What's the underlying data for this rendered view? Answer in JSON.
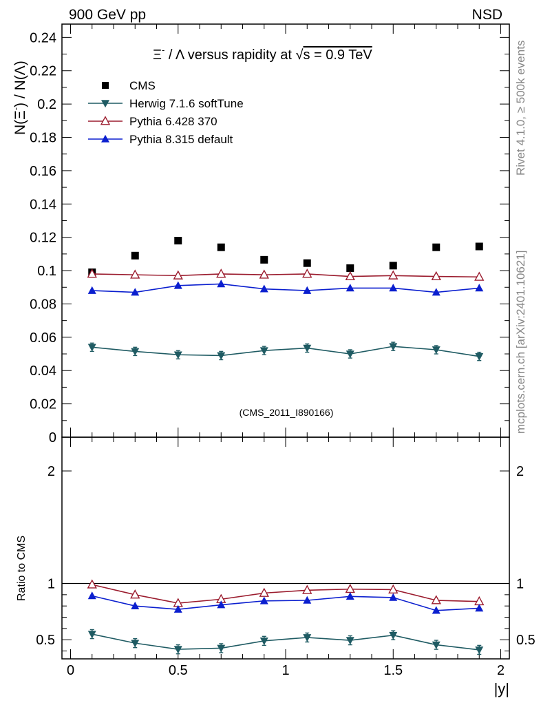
{
  "header": {
    "left_label": "900 GeV pp",
    "right_label": "NSD",
    "side_label_top": "Rivet 4.1.0, ≥ 500k events",
    "side_label_bottom": "mcplots.cern.ch [arXiv:2401.10621]"
  },
  "chart_data": [
    {
      "type": "scatter",
      "panel": "main",
      "title": "Ξ⁻ / Λ versus rapidity at √s = 0.9 TeV",
      "title_parts": {
        "prefix": "Ξ",
        "superscript": "-",
        "rest": " / Λ versus rapidity at ",
        "sqrt": "√",
        "s_eq": "s = 0.9 TeV"
      },
      "ylabel": "N(Ξ⁻)  /  N(Λ)",
      "ylabel_parts": {
        "a": "N(Ξ",
        "sup": "-",
        "b": ")  /  N(Λ)"
      },
      "xlabel": "|y|",
      "xlim": [
        -0.04,
        2.04
      ],
      "ylim": [
        0,
        0.248
      ],
      "ytick_labels": [
        "0",
        "0.02",
        "0.04",
        "0.06",
        "0.08",
        "0.1",
        "0.12",
        "0.14",
        "0.16",
        "0.18",
        "0.2",
        "0.22",
        "0.24"
      ],
      "ytick_values": [
        0,
        0.02,
        0.04,
        0.06,
        0.08,
        0.1,
        0.12,
        0.14,
        0.16,
        0.18,
        0.2,
        0.22,
        0.24
      ],
      "watermark": "(CMS_2011_I890166)",
      "x": [
        0.1,
        0.3,
        0.5,
        0.7,
        0.9,
        1.1,
        1.3,
        1.5,
        1.7,
        1.9
      ],
      "legend_position": "top-left",
      "series": [
        {
          "name": "CMS",
          "marker": "square",
          "color": "#000000",
          "line": false,
          "values": [
            0.099,
            0.109,
            0.118,
            0.114,
            0.1065,
            0.1045,
            0.1015,
            0.103,
            0.114,
            0.1145
          ]
        },
        {
          "name": "Herwig 7.1.6 softTune",
          "marker": "triangle-down",
          "color": "#1f5b63",
          "line": true,
          "values": [
            0.054,
            0.0515,
            0.0495,
            0.049,
            0.052,
            0.0535,
            0.05,
            0.0545,
            0.0525,
            0.0485
          ],
          "errors": [
            0.0025,
            0.0025,
            0.0025,
            0.0025,
            0.0025,
            0.0025,
            0.0025,
            0.0025,
            0.0025,
            0.0025
          ]
        },
        {
          "name": "Pythia 6.428 370",
          "marker": "triangle-up-open",
          "color": "#9b1c2e",
          "line": true,
          "values": [
            0.098,
            0.0975,
            0.097,
            0.098,
            0.0975,
            0.098,
            0.0965,
            0.097,
            0.0965,
            0.0962
          ]
        },
        {
          "name": "Pythia 8.315 default",
          "marker": "triangle-up",
          "color": "#0b1fcf",
          "line": true,
          "values": [
            0.088,
            0.087,
            0.091,
            0.092,
            0.089,
            0.088,
            0.0895,
            0.0895,
            0.087,
            0.0895
          ]
        }
      ]
    },
    {
      "type": "line",
      "panel": "ratio",
      "ylabel": "Ratio to CMS",
      "xlabel": "|y|",
      "xlim": [
        -0.04,
        2.04
      ],
      "ylim": [
        0.33,
        2.3
      ],
      "ytick_labels": [
        "0.5",
        "1",
        "2"
      ],
      "ytick_values": [
        0.5,
        1,
        2
      ],
      "xtick_labels": [
        "0",
        "0.5",
        "1",
        "1.5",
        "2"
      ],
      "xtick_values": [
        0,
        0.5,
        1,
        1.5,
        2
      ],
      "reference_line": 1,
      "x": [
        0.1,
        0.3,
        0.5,
        0.7,
        0.9,
        1.1,
        1.3,
        1.5,
        1.7,
        1.9
      ],
      "series": [
        {
          "name": "Herwig 7.1.6 softTune",
          "marker": "triangle-down",
          "color": "#1f5b63",
          "values": [
            0.55,
            0.47,
            0.415,
            0.425,
            0.49,
            0.52,
            0.495,
            0.54,
            0.455,
            0.41
          ],
          "errors": [
            0.04,
            0.04,
            0.04,
            0.04,
            0.04,
            0.04,
            0.04,
            0.04,
            0.04,
            0.04
          ]
        },
        {
          "name": "Pythia 6.428 370",
          "marker": "triangle-up-open",
          "color": "#9b1c2e",
          "values": [
            0.99,
            0.9,
            0.825,
            0.86,
            0.915,
            0.94,
            0.95,
            0.945,
            0.85,
            0.84
          ]
        },
        {
          "name": "Pythia 8.315 default",
          "marker": "triangle-up",
          "color": "#0b1fcf",
          "values": [
            0.89,
            0.8,
            0.77,
            0.81,
            0.845,
            0.85,
            0.885,
            0.875,
            0.76,
            0.78
          ]
        }
      ]
    }
  ]
}
